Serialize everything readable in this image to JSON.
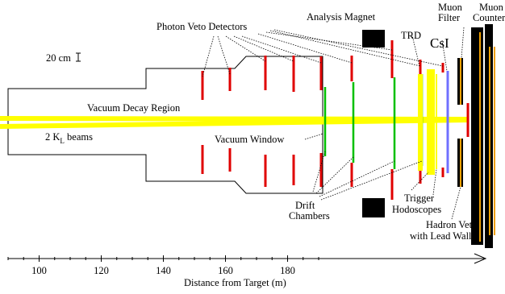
{
  "labels": {
    "photon_veto": "Photon Veto Detectors",
    "analysis_magnet": "Analysis Magnet",
    "muon_filter_1": "Muon",
    "muon_filter_2": "Filter",
    "muon_counters_1": "Muon",
    "muon_counters_2": "Counters",
    "trd": "TRD",
    "csi": "CsI",
    "scale": "20 cm",
    "vacuum_decay_region": "Vacuum Decay Region",
    "beams_prefix": "2 K",
    "beams_sub": "L",
    "beams_suffix": " beams",
    "vacuum_window": "Vacuum Window",
    "drift_1": "Drift",
    "drift_2": "Chambers",
    "trigger_1": "Trigger",
    "trigger_2": "Hodoscopes",
    "hadron_veto_1": "Hadron Veto",
    "hadron_veto_2": "with Lead Wall",
    "axis_title": "Distance from Target (m)"
  },
  "axis": {
    "ticks": [
      "100",
      "120",
      "140",
      "160",
      "180"
    ]
  },
  "colors": {
    "beam": "#ffff00",
    "veto": "#e00000",
    "chamber": "#00c000",
    "csi": "#7070ff",
    "hodoscope": "#ffff00",
    "muon_detector": "#f0a000",
    "magnet": "#000000"
  }
}
